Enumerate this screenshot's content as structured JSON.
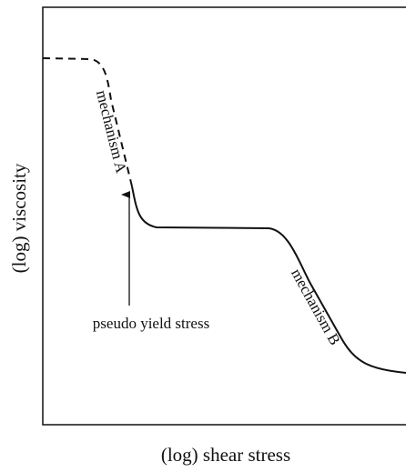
{
  "axes": {
    "x_label": "(log) shear stress",
    "y_label": "(log) viscosity"
  },
  "annotations": {
    "mechanism_a": "mechanism A",
    "mechanism_b": "mechanism B",
    "pseudo_yield_stress": "pseudo yield stress"
  }
}
